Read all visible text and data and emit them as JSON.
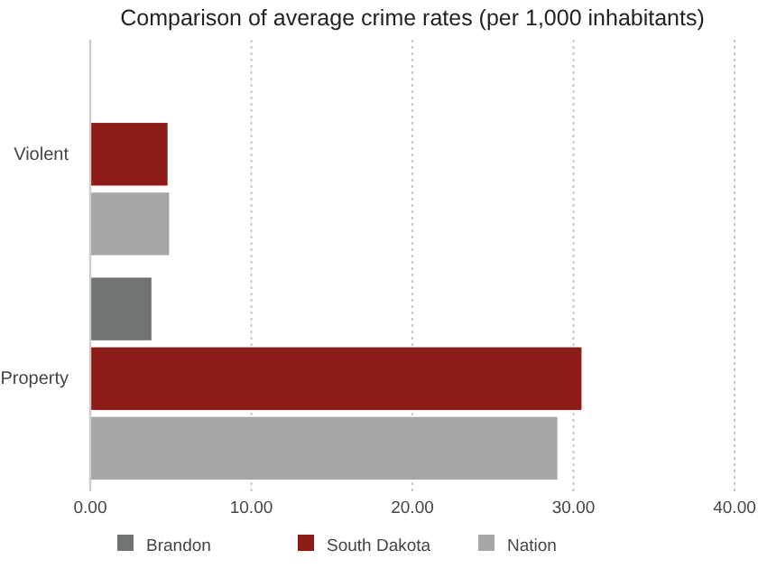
{
  "chart_data": {
    "type": "bar",
    "orientation": "horizontal",
    "title": "Comparison of average crime rates (per 1,000 inhabitants)",
    "categories": [
      "Violent",
      "Property"
    ],
    "series": [
      {
        "name": "Brandon",
        "color": "#6f7471",
        "values": [
          null,
          3.8
        ]
      },
      {
        "name": "South Dakota",
        "color": "#8b1c17",
        "values": [
          4.8,
          30.5
        ]
      },
      {
        "name": "Nation",
        "color": "#a6a6a6",
        "values": [
          4.9,
          29.0
        ]
      }
    ],
    "xlim": [
      0,
      40
    ],
    "xticks": [
      {
        "value": 0,
        "label": "0.00"
      },
      {
        "value": 10,
        "label": "10.00"
      },
      {
        "value": 20,
        "label": "20.00"
      },
      {
        "value": 30,
        "label": "30.00"
      },
      {
        "value": 40,
        "label": "40.00"
      }
    ],
    "grid": "x",
    "legend": "bottom"
  }
}
